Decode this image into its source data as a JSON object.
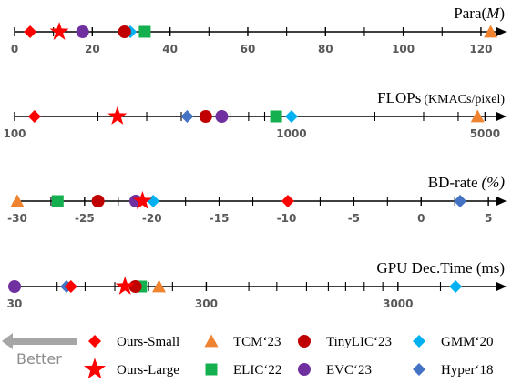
{
  "chart_data": [
    {
      "type": "scatter",
      "id": "params",
      "title": "Para(",
      "title_italic": "M",
      "title_suffix": ")",
      "scale": "linear",
      "xlim": [
        0,
        124
      ],
      "tick_labels": [
        "0",
        "20",
        "40",
        "60",
        "80",
        "100",
        "120"
      ],
      "tick_values": [
        0,
        20,
        40,
        60,
        80,
        100,
        120
      ],
      "minor_ticks": [
        10,
        30,
        50,
        70,
        90,
        110
      ],
      "points": [
        {
          "method": "Ours-Small",
          "x": 4.0
        },
        {
          "method": "Ours-Large",
          "x": 11.5
        },
        {
          "method": "EVC'23",
          "x": 17.5
        },
        {
          "method": "TinyLIC'23",
          "x": 28.3
        },
        {
          "method": "GMM'20",
          "x": 29.8
        },
        {
          "method": "ELIC'22",
          "x": 33.5
        },
        {
          "method": "TCM'23",
          "x": 122.5
        }
      ]
    },
    {
      "type": "scatter",
      "id": "flops",
      "title": "FLOPs",
      "title_sub": "(KMACs/pixel)",
      "scale": "log",
      "xlim": [
        100,
        5500
      ],
      "tick_labels": [
        "100",
        "1000",
        "5000"
      ],
      "tick_values": [
        100,
        1000,
        5000
      ],
      "minor_ticks": [
        200,
        300,
        400,
        500,
        600,
        700,
        800,
        900,
        2000,
        3000,
        4000
      ],
      "points": [
        {
          "method": "Ours-Small",
          "x": 118
        },
        {
          "method": "Ours-Large",
          "x": 235
        },
        {
          "method": "Hyper'18",
          "x": 420
        },
        {
          "method": "TinyLIC'23",
          "x": 490
        },
        {
          "method": "EVC'23",
          "x": 560
        },
        {
          "method": "ELIC'22",
          "x": 880
        },
        {
          "method": "GMM'20",
          "x": 1000
        },
        {
          "method": "TCM'23",
          "x": 4700
        }
      ]
    },
    {
      "type": "scatter",
      "id": "bdrate",
      "title": "BD-rate",
      "title_italic_sub": "(%)",
      "scale": "linear",
      "xlim": [
        -30.2,
        5.6
      ],
      "tick_labels": [
        "-30",
        "-25",
        "-20",
        "-15",
        "-10",
        "-5",
        "0",
        "5"
      ],
      "tick_values": [
        -30,
        -25,
        -20,
        -15,
        -10,
        -5,
        0,
        5
      ],
      "minor_ticks": [
        -27.5,
        -22.5,
        -17.5,
        -12.5,
        -7.5,
        -2.5,
        2.5
      ],
      "points": [
        {
          "method": "TCM'23",
          "x": -30.0
        },
        {
          "method": "ELIC'22",
          "x": -27.0
        },
        {
          "method": "TinyLIC'23",
          "x": -24.0
        },
        {
          "method": "EVC'23",
          "x": -21.2
        },
        {
          "method": "Ours-Large",
          "x": -20.7
        },
        {
          "method": "GMM'20",
          "x": -19.9
        },
        {
          "method": "Ours-Small",
          "x": -9.9
        },
        {
          "method": "Hyper'18",
          "x": 2.9
        }
      ]
    },
    {
      "type": "scatter",
      "id": "gpu",
      "title": "GPU Dec.Time (ms)",
      "scale": "log",
      "xlim": [
        30,
        9800
      ],
      "tick_labels": [
        "30",
        "300",
        "3000"
      ],
      "tick_values": [
        30,
        300,
        3000
      ],
      "minor_ticks": [
        50,
        70,
        100,
        150,
        200,
        500,
        700,
        1000,
        1300,
        1600,
        2000,
        2500,
        5000
      ],
      "points": [
        {
          "method": "EVC'23",
          "x": 30
        },
        {
          "method": "Hyper'18",
          "x": 56
        },
        {
          "method": "Ours-Small",
          "x": 59
        },
        {
          "method": "Ours-Large",
          "x": 113
        },
        {
          "method": "TinyLIC'23",
          "x": 128
        },
        {
          "method": "ELIC'22",
          "x": 137
        },
        {
          "method": "TCM'23",
          "x": 170
        },
        {
          "method": "GMM'20",
          "x": 6000
        }
      ]
    }
  ],
  "methods": {
    "Ours-Small": {
      "marker": "diamond",
      "color": "#ff0000"
    },
    "Ours-Large": {
      "marker": "star",
      "color": "#ff0000"
    },
    "TCM'23": {
      "marker": "triangle",
      "color": "#f08330"
    },
    "ELIC'22": {
      "marker": "square",
      "color": "#14b050"
    },
    "TinyLIC'23": {
      "marker": "circle",
      "color": "#c00000"
    },
    "EVC'23": {
      "marker": "circle",
      "color": "#7030a0"
    },
    "GMM'20": {
      "marker": "diamond",
      "color": "#00b0f0"
    },
    "Hyper'18": {
      "marker": "diamond",
      "color": "#4472c4"
    }
  },
  "legend": {
    "better_label": "Better",
    "better_arrow_color": "#a6a6a6",
    "items": [
      {
        "label": "Ours-Small",
        "method": "Ours-Small"
      },
      {
        "label": "Ours-Large",
        "method": "Ours-Large"
      },
      {
        "label": "TCM‘23",
        "method": "TCM'23"
      },
      {
        "label": "ELIC‘22",
        "method": "ELIC'22"
      },
      {
        "label": "TinyLIC‘23",
        "method": "TinyLIC'23"
      },
      {
        "label": "EVC‘23",
        "method": "EVC'23"
      },
      {
        "label": "GMM‘20",
        "method": "GMM'20"
      },
      {
        "label": "Hyper‘18",
        "method": "Hyper'18"
      }
    ]
  }
}
